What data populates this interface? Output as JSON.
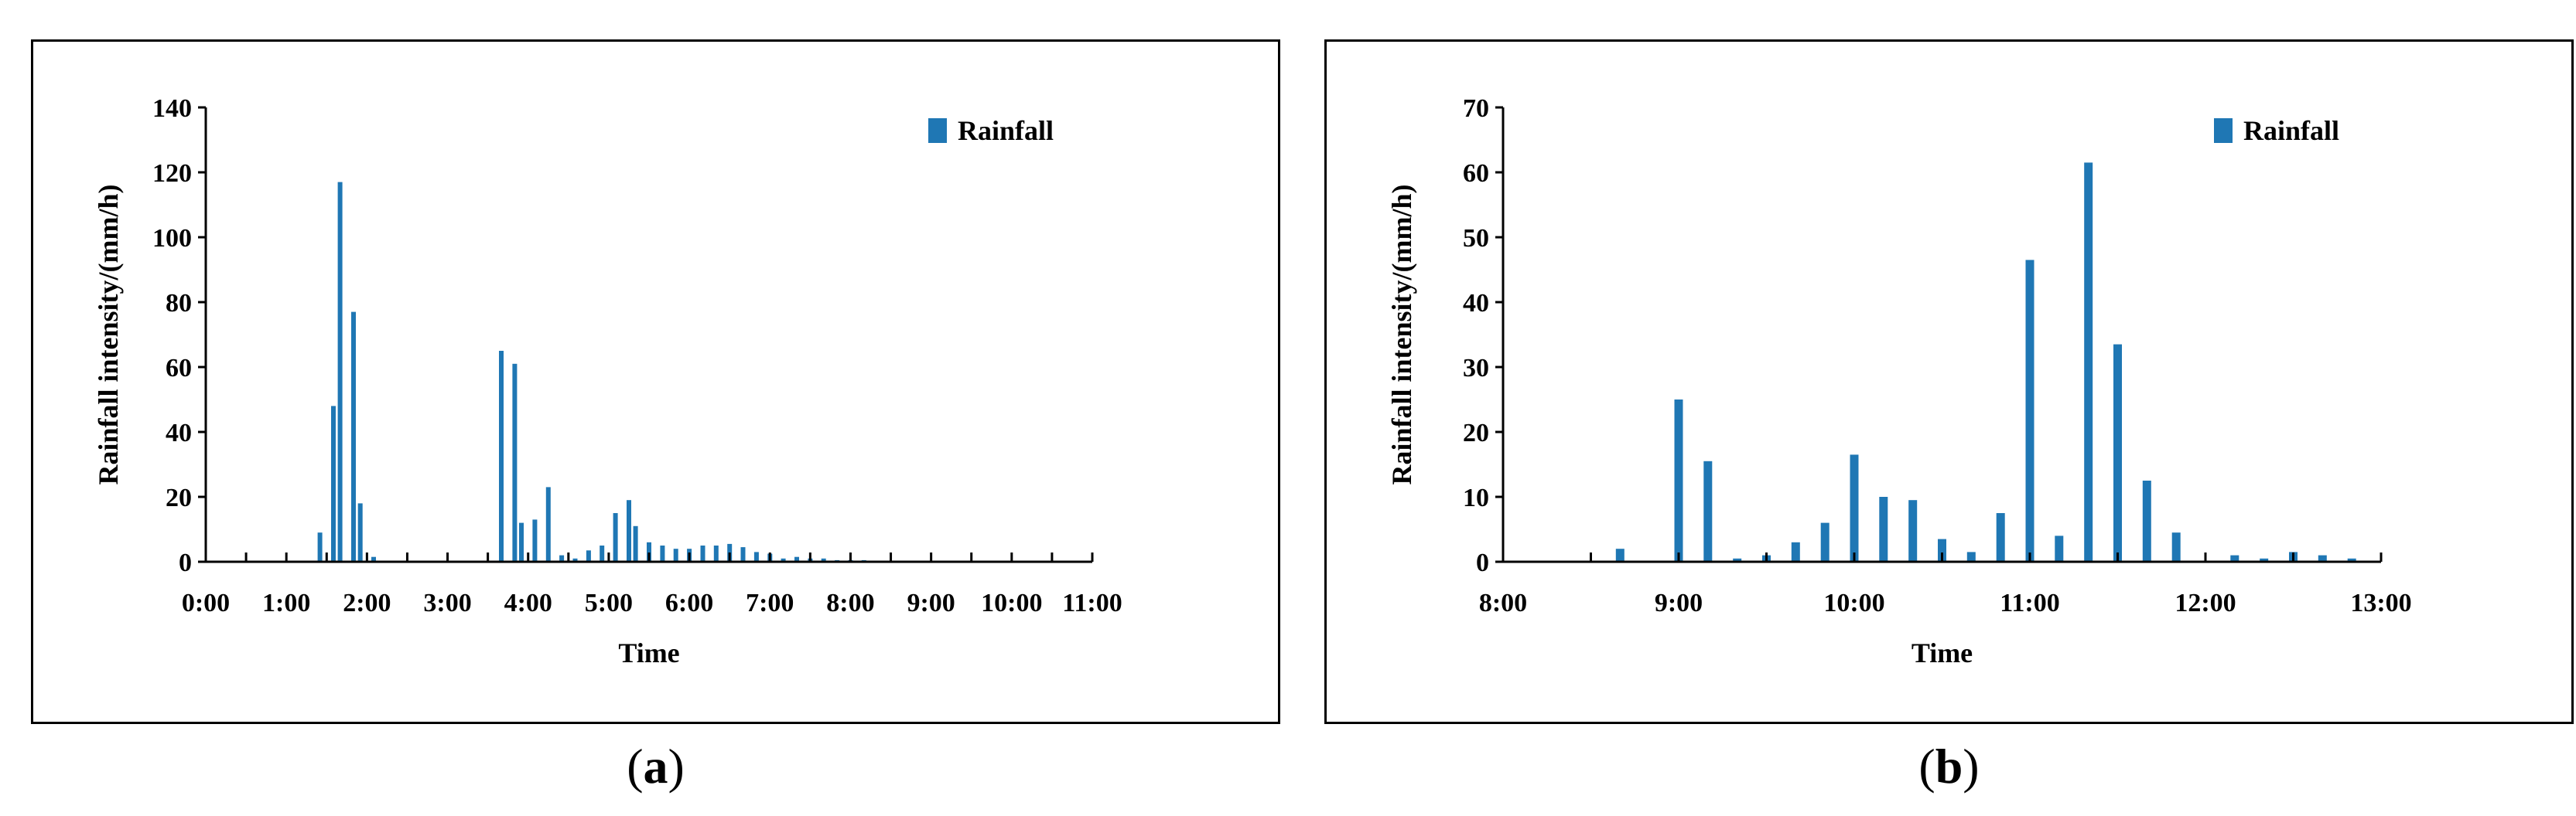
{
  "chart_data": [
    {
      "type": "bar",
      "panel_label": "a",
      "xlabel": "Time",
      "ylabel": "Rainfall intensity/(mm/h)",
      "ylim": [
        0,
        140
      ],
      "yticks": [
        0,
        20,
        40,
        60,
        80,
        100,
        120,
        140
      ],
      "xlim_hours": [
        0,
        11
      ],
      "xtick_labels": [
        "0:00",
        "1:00",
        "2:00",
        "3:00",
        "4:00",
        "5:00",
        "6:00",
        "7:00",
        "8:00",
        "9:00",
        "10:00",
        "11:00"
      ],
      "legend": {
        "position": "top-right",
        "entries": [
          "Rainfall"
        ]
      },
      "grid": false,
      "series": [
        {
          "name": "Rainfall",
          "color": "#1f77b4",
          "x": [
            "1:25",
            "1:35",
            "1:40",
            "1:50",
            "1:55",
            "2:05",
            "3:40",
            "3:50",
            "3:55",
            "4:05",
            "4:15",
            "4:25",
            "4:35",
            "4:45",
            "4:55",
            "5:05",
            "5:15",
            "5:20",
            "5:30",
            "5:40",
            "5:50",
            "6:00",
            "6:10",
            "6:20",
            "6:30",
            "6:40",
            "6:50",
            "7:00",
            "7:10",
            "7:20",
            "7:30",
            "7:40",
            "7:50",
            "8:00",
            "8:10",
            "8:20"
          ],
          "values": [
            9,
            48,
            117,
            77,
            18,
            1.5,
            65,
            61,
            12,
            13,
            23,
            2,
            1,
            3.5,
            5,
            15,
            19,
            11,
            6,
            5,
            4,
            4,
            5,
            5,
            5.5,
            4.5,
            3,
            2.5,
            1,
            1.5,
            1,
            1,
            0.5,
            0.5,
            0.5,
            0.3
          ]
        }
      ]
    },
    {
      "type": "bar",
      "panel_label": "b",
      "xlabel": "Time",
      "ylabel": "Rainfall intensity/(mm/h)",
      "ylim": [
        0,
        70
      ],
      "yticks": [
        0,
        10,
        20,
        30,
        40,
        50,
        60,
        70
      ],
      "xlim_hours": [
        8,
        13
      ],
      "xtick_labels": [
        "8:00",
        "9:00",
        "10:00",
        "11:00",
        "12:00",
        "13:00"
      ],
      "legend": {
        "position": "top-right",
        "entries": [
          "Rainfall"
        ]
      },
      "grid": false,
      "series": [
        {
          "name": "Rainfall",
          "color": "#1f77b4",
          "x": [
            "8:40",
            "9:00",
            "9:10",
            "9:20",
            "9:30",
            "9:40",
            "9:50",
            "10:00",
            "10:10",
            "10:20",
            "10:30",
            "10:40",
            "10:50",
            "11:00",
            "11:10",
            "11:20",
            "11:30",
            "11:40",
            "11:50",
            "12:10",
            "12:20",
            "12:30",
            "12:40",
            "12:50"
          ],
          "values": [
            2,
            25,
            15.5,
            0.5,
            1,
            3,
            6,
            16.5,
            10,
            9.5,
            3.5,
            1.5,
            7.5,
            46.5,
            4,
            61.5,
            33.5,
            12.5,
            4.5,
            1,
            0.5,
            1.5,
            1,
            0.5
          ]
        }
      ]
    }
  ]
}
